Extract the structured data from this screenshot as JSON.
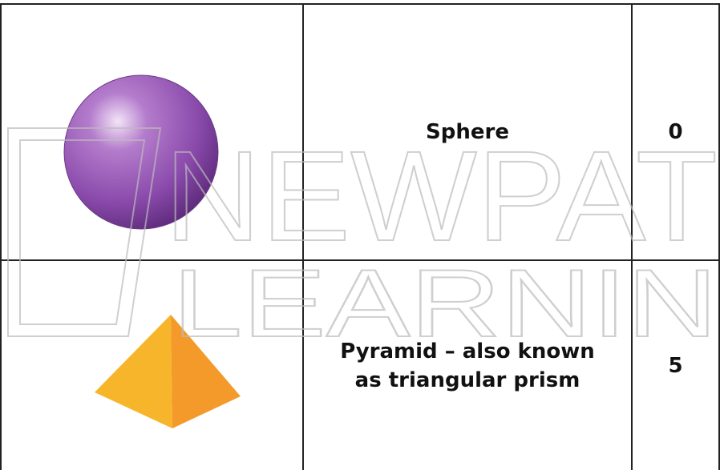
{
  "table": {
    "rows": [
      [
        "Sphere",
        0
      ],
      [
        "Pyramid – also known as triangular prism",
        5
      ]
    ]
  },
  "watermark": [
    "NEWPAT",
    "LEARNIN"
  ]
}
